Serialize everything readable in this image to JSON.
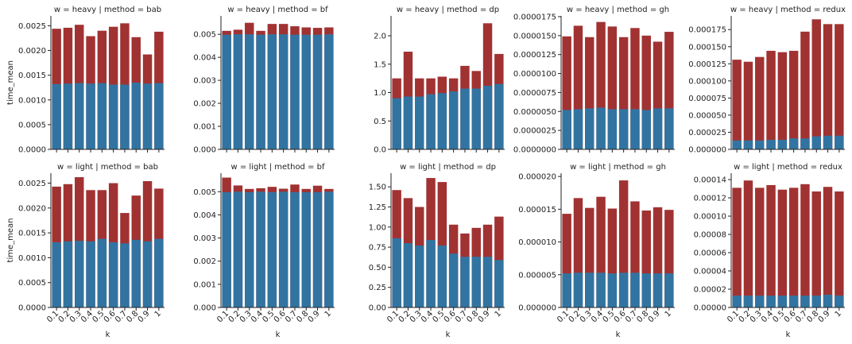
{
  "colors": {
    "bottom": "#3274a1",
    "top": "#a13232"
  },
  "chart_data": [
    {
      "type": "bar",
      "title": "w = heavy | method = bab",
      "categories": [
        "0.1",
        "0.2",
        "0.3",
        "0.4",
        "0.5",
        "0.6",
        "0.7",
        "0.8",
        "0.9",
        "1"
      ],
      "ylim": [
        0,
        0.0027
      ],
      "ylabel": "time_mean",
      "xlabel": "",
      "yticks": [
        0,
        0.0005,
        0.001,
        0.0015,
        0.002,
        0.0025
      ],
      "ytick_labels": [
        "0.0000",
        "0.0005",
        "0.0010",
        "0.0015",
        "0.0020",
        "0.0025"
      ],
      "series": [
        {
          "values": [
            0.00244,
            0.00246,
            0.00252,
            0.00229,
            0.0024,
            0.00248,
            0.00255,
            0.00227,
            0.00192,
            0.00238
          ]
        },
        {
          "values": [
            0.00132,
            0.00133,
            0.00134,
            0.00133,
            0.00134,
            0.00131,
            0.00131,
            0.00135,
            0.00133,
            0.00134
          ]
        }
      ]
    },
    {
      "type": "bar",
      "title": "w = heavy | method = bf",
      "categories": [
        "0.1",
        "0.2",
        "0.3",
        "0.4",
        "0.5",
        "0.6",
        "0.7",
        "0.8",
        "0.9",
        "1"
      ],
      "ylim": [
        0,
        0.0058
      ],
      "ylabel": "",
      "xlabel": "",
      "yticks": [
        0,
        0.001,
        0.002,
        0.003,
        0.004,
        0.005
      ],
      "ytick_labels": [
        "0.000",
        "0.001",
        "0.002",
        "0.003",
        "0.004",
        "0.005"
      ],
      "series": [
        {
          "values": [
            0.00515,
            0.0052,
            0.0055,
            0.00515,
            0.00545,
            0.00545,
            0.00535,
            0.0053,
            0.00528,
            0.0053
          ]
        },
        {
          "values": [
            0.00498,
            0.005,
            0.005,
            0.00498,
            0.005,
            0.005,
            0.00498,
            0.00498,
            0.00498,
            0.005
          ]
        }
      ]
    },
    {
      "type": "bar",
      "title": "w = heavy | method = dp",
      "categories": [
        "0.1",
        "0.2",
        "0.3",
        "0.4",
        "0.5",
        "0.6",
        "0.7",
        "0.8",
        "0.9",
        "1"
      ],
      "ylim": [
        0,
        2.35
      ],
      "ylabel": "",
      "xlabel": "",
      "yticks": [
        0,
        0.5,
        1,
        1.5,
        2
      ],
      "ytick_labels": [
        "0.0",
        "0.5",
        "1.0",
        "1.5",
        "2.0"
      ],
      "series": [
        {
          "values": [
            1.25,
            1.72,
            1.25,
            1.25,
            1.28,
            1.25,
            1.47,
            1.38,
            2.22,
            1.68
          ]
        },
        {
          "values": [
            0.9,
            0.93,
            0.93,
            0.97,
            0.99,
            1.02,
            1.07,
            1.07,
            1.12,
            1.15
          ]
        }
      ]
    },
    {
      "type": "bar",
      "title": "w = heavy | method = gh",
      "categories": [
        "0.1",
        "0.2",
        "0.3",
        "0.4",
        "0.5",
        "0.6",
        "0.7",
        "0.8",
        "0.9",
        "1"
      ],
      "ylim": [
        0,
        1.76e-05
      ],
      "ylabel": "",
      "xlabel": "",
      "yticks": [
        0,
        2.5e-06,
        5e-06,
        7.5e-06,
        1e-05,
        1.25e-05,
        1.5e-05,
        1.75e-05
      ],
      "ytick_labels": [
        "0.0000000",
        "0.0000025",
        "0.0000050",
        "0.0000075",
        "0.0000100",
        "0.0000125",
        "0.0000150",
        "0.0000175"
      ],
      "series": [
        {
          "values": [
            1.49e-05,
            1.63e-05,
            1.48e-05,
            1.68e-05,
            1.62e-05,
            1.48e-05,
            1.6e-05,
            1.5e-05,
            1.42e-05,
            1.55e-05
          ]
        },
        {
          "values": [
            5.2e-06,
            5.3e-06,
            5.4e-06,
            5.5e-06,
            5.3e-06,
            5.3e-06,
            5.3e-06,
            5.2e-06,
            5.4e-06,
            5.4e-06
          ]
        }
      ]
    },
    {
      "type": "bar",
      "title": "w = heavy | method = redux",
      "categories": [
        "0.1",
        "0.2",
        "0.3",
        "0.4",
        "0.5",
        "0.6",
        "0.7",
        "0.8",
        "0.9",
        "1"
      ],
      "ylim": [
        0,
        0.000195
      ],
      "ylabel": "",
      "xlabel": "",
      "yticks": [
        0,
        2.5e-05,
        5e-05,
        7.5e-05,
        0.0001,
        0.000125,
        0.00015,
        0.000175
      ],
      "ytick_labels": [
        "0.000000",
        "0.000025",
        "0.000050",
        "0.000075",
        "0.000100",
        "0.000125",
        "0.000150",
        "0.000175"
      ],
      "series": [
        {
          "values": [
            0.000131,
            0.000128,
            0.000135,
            0.000144,
            0.000142,
            0.000144,
            0.000172,
            0.00019,
            0.000183,
            0.000183
          ]
        },
        {
          "values": [
            1.3e-05,
            1.3e-05,
            1.3e-05,
            1.4e-05,
            1.4e-05,
            1.6e-05,
            1.6e-05,
            1.9e-05,
            2e-05,
            2e-05
          ]
        }
      ]
    },
    {
      "type": "bar",
      "title": "w = light | method = bab",
      "categories": [
        "0.1",
        "0.2",
        "0.3",
        "0.4",
        "0.5",
        "0.6",
        "0.7",
        "0.8",
        "0.9",
        "1"
      ],
      "ylim": [
        0,
        0.0027
      ],
      "ylabel": "time_mean",
      "xlabel": "k",
      "yticks": [
        0,
        0.0005,
        0.001,
        0.0015,
        0.002,
        0.0025
      ],
      "ytick_labels": [
        "0.0000",
        "0.0005",
        "0.0010",
        "0.0015",
        "0.0020",
        "0.0025"
      ],
      "series": [
        {
          "values": [
            0.00243,
            0.00248,
            0.00262,
            0.00236,
            0.00236,
            0.0025,
            0.0019,
            0.00225,
            0.00254,
            0.00239
          ]
        },
        {
          "values": [
            0.00131,
            0.00133,
            0.00134,
            0.00133,
            0.00138,
            0.00131,
            0.00129,
            0.00136,
            0.00133,
            0.00138
          ]
        }
      ]
    },
    {
      "type": "bar",
      "title": "w = light | method = bf",
      "categories": [
        "0.1",
        "0.2",
        "0.3",
        "0.4",
        "0.5",
        "0.6",
        "0.7",
        "0.8",
        "0.9",
        "1"
      ],
      "ylim": [
        0,
        0.0058
      ],
      "ylabel": "",
      "xlabel": "k",
      "yticks": [
        0,
        0.001,
        0.002,
        0.003,
        0.004,
        0.005
      ],
      "ytick_labels": [
        "0.000",
        "0.001",
        "0.002",
        "0.003",
        "0.004",
        "0.005"
      ],
      "series": [
        {
          "values": [
            0.00561,
            0.00527,
            0.00512,
            0.00515,
            0.00521,
            0.00513,
            0.00531,
            0.00512,
            0.00526,
            0.00512
          ]
        },
        {
          "values": [
            0.00498,
            0.005,
            0.00498,
            0.005,
            0.00498,
            0.005,
            0.00498,
            0.00498,
            0.00498,
            0.005
          ]
        }
      ]
    },
    {
      "type": "bar",
      "title": "w = light | method = dp",
      "categories": [
        "0.1",
        "0.2",
        "0.3",
        "0.4",
        "0.5",
        "0.6",
        "0.7",
        "0.8",
        "0.9",
        "1"
      ],
      "ylim": [
        0,
        1.67
      ],
      "ylabel": "",
      "xlabel": "k",
      "yticks": [
        0,
        0.25,
        0.5,
        0.75,
        1,
        1.25,
        1.5
      ],
      "ytick_labels": [
        "0.00",
        "0.25",
        "0.50",
        "0.75",
        "1.00",
        "1.25",
        "1.50"
      ],
      "series": [
        {
          "values": [
            1.46,
            1.36,
            1.25,
            1.61,
            1.56,
            1.03,
            0.92,
            0.99,
            1.03,
            1.13
          ]
        },
        {
          "values": [
            0.86,
            0.8,
            0.77,
            0.84,
            0.77,
            0.67,
            0.63,
            0.63,
            0.63,
            0.59
          ]
        }
      ]
    },
    {
      "type": "bar",
      "title": "w = light | method = gh",
      "categories": [
        "0.1",
        "0.2",
        "0.3",
        "0.4",
        "0.5",
        "0.6",
        "0.7",
        "0.8",
        "0.9",
        "1"
      ],
      "ylim": [
        0,
        2.05e-05
      ],
      "ylabel": "",
      "xlabel": "k",
      "yticks": [
        0,
        5e-06,
        1e-05,
        1.5e-05,
        2e-05
      ],
      "ytick_labels": [
        "0.000000",
        "0.000005",
        "0.000010",
        "0.000015",
        "0.000020"
      ],
      "series": [
        {
          "values": [
            1.43e-05,
            1.67e-05,
            1.52e-05,
            1.69e-05,
            1.51e-05,
            1.94e-05,
            1.62e-05,
            1.48e-05,
            1.53e-05,
            1.49e-05
          ]
        },
        {
          "values": [
            5.2e-06,
            5.3e-06,
            5.3e-06,
            5.3e-06,
            5.2e-06,
            5.3e-06,
            5.3e-06,
            5.2e-06,
            5.2e-06,
            5.2e-06
          ]
        }
      ]
    },
    {
      "type": "bar",
      "title": "w = light | method = redux",
      "categories": [
        "0.1",
        "0.2",
        "0.3",
        "0.4",
        "0.5",
        "0.6",
        "0.7",
        "0.8",
        "0.9",
        "1"
      ],
      "ylim": [
        0,
        0.000147
      ],
      "ylabel": "",
      "xlabel": "k",
      "yticks": [
        0,
        2e-05,
        4e-05,
        6e-05,
        8e-05,
        0.0001,
        0.00012,
        0.00014
      ],
      "ytick_labels": [
        "0.00000",
        "0.00002",
        "0.00004",
        "0.00006",
        "0.00008",
        "0.00010",
        "0.00012",
        "0.00014"
      ],
      "series": [
        {
          "values": [
            0.000131,
            0.000139,
            0.000131,
            0.000134,
            0.000129,
            0.000131,
            0.000135,
            0.000127,
            0.000132,
            0.000127
          ]
        },
        {
          "values": [
            1.3e-05,
            1.3e-05,
            1.3e-05,
            1.3e-05,
            1.3e-05,
            1.3e-05,
            1.3e-05,
            1.3e-05,
            1.4e-05,
            1.3e-05
          ]
        }
      ]
    }
  ]
}
